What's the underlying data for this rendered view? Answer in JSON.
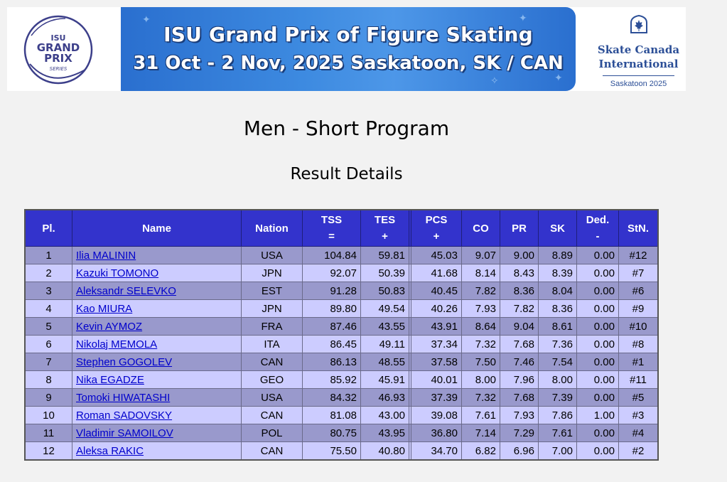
{
  "banner": {
    "series_logo": [
      "ISU",
      "GRAND",
      "PRIX",
      "SERIES"
    ],
    "title_line1": "ISU Grand Prix of Figure Skating",
    "title_line2": "31 Oct - 2 Nov, 2025 Saskatoon, SK / CAN",
    "event_name_line1": "Skate Canada",
    "event_name_line2": "International",
    "event_sub": "Saskatoon 2025",
    "colors": {
      "band": "#3d8ae0",
      "event_text": "#2c4f97"
    }
  },
  "page": {
    "title": "Men - Short Program",
    "subtitle": "Result Details"
  },
  "table": {
    "headers": {
      "pl": "Pl.",
      "name": "Name",
      "nation": "Nation",
      "tss": "TSS",
      "tss_sub": "=",
      "tes": "TES",
      "tes_sub": "+",
      "pcs": "PCS",
      "pcs_sub": "+",
      "co": "CO",
      "pr": "PR",
      "sk": "SK",
      "ded": "Ded.",
      "ded_sub": "-",
      "stn": "StN."
    },
    "rows": [
      {
        "pl": "1",
        "name": "Ilia MALININ",
        "nation": "USA",
        "tss": "104.84",
        "tes": "59.81",
        "pcs": "45.03",
        "co": "9.07",
        "pr": "9.00",
        "sk": "8.89",
        "ded": "0.00",
        "stn": "#12"
      },
      {
        "pl": "2",
        "name": "Kazuki TOMONO",
        "nation": "JPN",
        "tss": "92.07",
        "tes": "50.39",
        "pcs": "41.68",
        "co": "8.14",
        "pr": "8.43",
        "sk": "8.39",
        "ded": "0.00",
        "stn": "#7"
      },
      {
        "pl": "3",
        "name": "Aleksandr SELEVKO",
        "nation": "EST",
        "tss": "91.28",
        "tes": "50.83",
        "pcs": "40.45",
        "co": "7.82",
        "pr": "8.36",
        "sk": "8.04",
        "ded": "0.00",
        "stn": "#6"
      },
      {
        "pl": "4",
        "name": "Kao MIURA",
        "nation": "JPN",
        "tss": "89.80",
        "tes": "49.54",
        "pcs": "40.26",
        "co": "7.93",
        "pr": "7.82",
        "sk": "8.36",
        "ded": "0.00",
        "stn": "#9"
      },
      {
        "pl": "5",
        "name": "Kevin AYMOZ",
        "nation": "FRA",
        "tss": "87.46",
        "tes": "43.55",
        "pcs": "43.91",
        "co": "8.64",
        "pr": "9.04",
        "sk": "8.61",
        "ded": "0.00",
        "stn": "#10"
      },
      {
        "pl": "6",
        "name": "Nikolaj MEMOLA",
        "nation": "ITA",
        "tss": "86.45",
        "tes": "49.11",
        "pcs": "37.34",
        "co": "7.32",
        "pr": "7.68",
        "sk": "7.36",
        "ded": "0.00",
        "stn": "#8"
      },
      {
        "pl": "7",
        "name": "Stephen GOGOLEV",
        "nation": "CAN",
        "tss": "86.13",
        "tes": "48.55",
        "pcs": "37.58",
        "co": "7.50",
        "pr": "7.46",
        "sk": "7.54",
        "ded": "0.00",
        "stn": "#1"
      },
      {
        "pl": "8",
        "name": "Nika EGADZE",
        "nation": "GEO",
        "tss": "85.92",
        "tes": "45.91",
        "pcs": "40.01",
        "co": "8.00",
        "pr": "7.96",
        "sk": "8.00",
        "ded": "0.00",
        "stn": "#11"
      },
      {
        "pl": "9",
        "name": "Tomoki HIWATASHI",
        "nation": "USA",
        "tss": "84.32",
        "tes": "46.93",
        "pcs": "37.39",
        "co": "7.32",
        "pr": "7.68",
        "sk": "7.39",
        "ded": "0.00",
        "stn": "#5"
      },
      {
        "pl": "10",
        "name": "Roman SADOVSKY",
        "nation": "CAN",
        "tss": "81.08",
        "tes": "43.00",
        "pcs": "39.08",
        "co": "7.61",
        "pr": "7.93",
        "sk": "7.86",
        "ded": "1.00",
        "stn": "#3"
      },
      {
        "pl": "11",
        "name": "Vladimir SAMOILOV",
        "nation": "POL",
        "tss": "80.75",
        "tes": "43.95",
        "pcs": "36.80",
        "co": "7.14",
        "pr": "7.29",
        "sk": "7.61",
        "ded": "0.00",
        "stn": "#4"
      },
      {
        "pl": "12",
        "name": "Aleksa RAKIC",
        "nation": "CAN",
        "tss": "75.50",
        "tes": "40.80",
        "pcs": "34.70",
        "co": "6.82",
        "pr": "6.96",
        "sk": "7.00",
        "ded": "0.00",
        "stn": "#2"
      }
    ]
  }
}
